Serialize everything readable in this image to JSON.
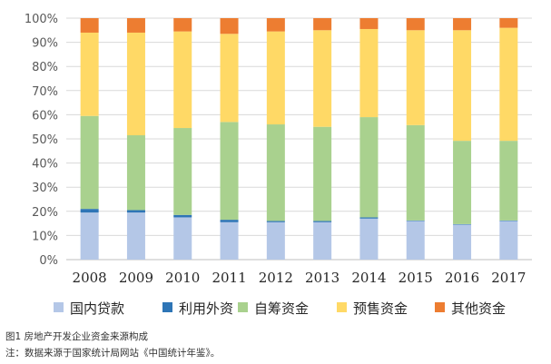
{
  "chart_data": {
    "type": "bar",
    "stacked": true,
    "percent": true,
    "categories": [
      "2008",
      "2009",
      "2010",
      "2011",
      "2012",
      "2013",
      "2014",
      "2015",
      "2016",
      "2017"
    ],
    "series": [
      {
        "name": "国内贷款",
        "color": "#b4c7e7",
        "values": [
          19.5,
          19.5,
          17.5,
          15.5,
          15.5,
          15.5,
          17.0,
          16.0,
          14.5,
          16.0
        ]
      },
      {
        "name": "利用外资",
        "color": "#2e75b6",
        "values": [
          1.5,
          1.0,
          1.0,
          1.0,
          0.5,
          0.5,
          0.5,
          0.2,
          0.2,
          0.2
        ]
      },
      {
        "name": "自筹资金",
        "color": "#a9d18e",
        "values": [
          38.5,
          31.0,
          36.0,
          40.5,
          40.0,
          39.0,
          41.5,
          39.5,
          34.5,
          33.0
        ]
      },
      {
        "name": "预售资金",
        "color": "#ffd966",
        "values": [
          34.5,
          42.5,
          40.0,
          36.5,
          38.5,
          40.0,
          36.5,
          39.3,
          45.8,
          46.8
        ]
      },
      {
        "name": "其他资金",
        "color": "#ed7d31",
        "values": [
          6.0,
          6.0,
          5.5,
          6.5,
          5.5,
          5.0,
          4.5,
          5.0,
          5.0,
          4.0
        ]
      }
    ],
    "ylim": [
      0,
      100
    ],
    "yticks": [
      "0%",
      "10%",
      "20%",
      "30%",
      "40%",
      "50%",
      "60%",
      "70%",
      "80%",
      "90%",
      "100%"
    ],
    "grid": true,
    "legend_position": "bottom"
  },
  "captions": {
    "figure": "图1 房地产开发企业资金来源构成",
    "note": "注：数据来源于国家统计局网站《中国统计年鉴》。"
  }
}
